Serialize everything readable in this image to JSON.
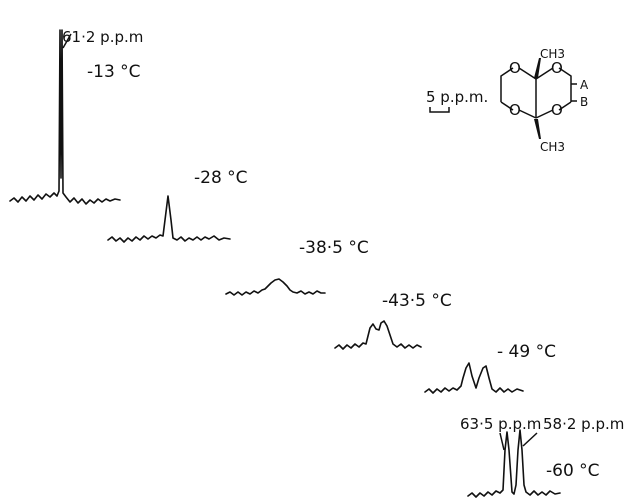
{
  "spectra": [
    {
      "temperature": "-13 °C",
      "peak_label": "61·2 p.p.m"
    },
    {
      "temperature": "-28 °C"
    },
    {
      "temperature": "-38·5 °C"
    },
    {
      "temperature": "-43·5 °C"
    },
    {
      "temperature": "- 49 °C"
    },
    {
      "temperature": "-60 °C",
      "peak_labels": [
        "63·5 p.p.m",
        "58·2 p.p.m"
      ]
    }
  ],
  "scale_bar": {
    "label": "5 p.p.m."
  },
  "structure": {
    "atoms": {
      "o_top_left": "O",
      "o_top_right": "O",
      "o_bottom_left": "O",
      "o_bottom_right": "O",
      "methyl_top": "CH3",
      "methyl_bottom": "CH3",
      "label_a": "A",
      "label_b": "B"
    }
  }
}
